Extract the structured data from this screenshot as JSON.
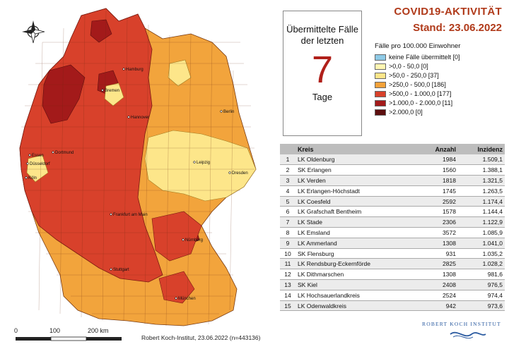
{
  "map": {
    "copyright": "Robert Koch-Institut, 23.06.2022 (n=443136)",
    "scale_labels": [
      "0",
      "100",
      "200 km"
    ],
    "cities": [
      "Hamburg",
      "Bremen",
      "Berlin",
      "Hannover",
      "Essen",
      "Dortmund",
      "Düsseldorf",
      "Köln",
      "Leipzig",
      "Dresden",
      "Frankfurt am Main",
      "Nürnberg",
      "Stuttgart",
      "München"
    ]
  },
  "box7": {
    "title": "Übermittelte Fälle der letzten",
    "number": "7",
    "unit": "Tage"
  },
  "header": {
    "title": "COVID19-AKTIVITÄT",
    "subtitle": "Stand: 23.06.2022"
  },
  "legend": {
    "heading": "Fälle pro 100.000 Einwohner",
    "items": [
      {
        "label": "keine Fälle übermittelt [0]",
        "color": "#8ecae6"
      },
      {
        "label": ">0,0 - 50,0 [0]",
        "color": "#fff6b3"
      },
      {
        "label": ">50,0 - 250,0 [37]",
        "color": "#fde68a"
      },
      {
        "label": ">250,0 - 500,0 [186]",
        "color": "#f4a23a"
      },
      {
        "label": ">500,0 - 1.000,0 [177]",
        "color": "#d8412b"
      },
      {
        "label": ">1.000,0 - 2.000,0 [11]",
        "color": "#a31a1a"
      },
      {
        "label": ">2.000,0 [0]",
        "color": "#5c0e0e"
      }
    ]
  },
  "table": {
    "columns": [
      "Kreis",
      "Anzahl",
      "Inzidenz"
    ],
    "rows": [
      {
        "rank": "1",
        "name": "LK Oldenburg",
        "count": "1984",
        "incidence": "1.509,1"
      },
      {
        "rank": "2",
        "name": "SK Erlangen",
        "count": "1560",
        "incidence": "1.388,1"
      },
      {
        "rank": "3",
        "name": "LK Verden",
        "count": "1818",
        "incidence": "1.321,5"
      },
      {
        "rank": "4",
        "name": "LK Erlangen-Höchstadt",
        "count": "1745",
        "incidence": "1.263,5"
      },
      {
        "rank": "5",
        "name": "LK Coesfeld",
        "count": "2592",
        "incidence": "1.174,4"
      },
      {
        "rank": "6",
        "name": "LK Grafschaft Bentheim",
        "count": "1578",
        "incidence": "1.144,4"
      },
      {
        "rank": "7",
        "name": "LK Stade",
        "count": "2306",
        "incidence": "1.122,9"
      },
      {
        "rank": "8",
        "name": "LK Emsland",
        "count": "3572",
        "incidence": "1.085,9"
      },
      {
        "rank": "9",
        "name": "LK Ammerland",
        "count": "1308",
        "incidence": "1.041,0"
      },
      {
        "rank": "10",
        "name": "SK Flensburg",
        "count": "931",
        "incidence": "1.035,2"
      },
      {
        "rank": "11",
        "name": "LK Rendsburg-Eckernförde",
        "count": "2825",
        "incidence": "1.028,2"
      },
      {
        "rank": "12",
        "name": "LK Dithmarschen",
        "count": "1308",
        "incidence": "981,6"
      },
      {
        "rank": "13",
        "name": "SK Kiel",
        "count": "2408",
        "incidence": "976,5"
      },
      {
        "rank": "14",
        "name": "LK Hochsauerlandkreis",
        "count": "2524",
        "incidence": "974,4"
      },
      {
        "rank": "15",
        "name": "LK Odenwaldkreis",
        "count": "942",
        "incidence": "973,6"
      }
    ]
  },
  "logo": {
    "text": "ROBERT KOCH INSTITUT"
  }
}
